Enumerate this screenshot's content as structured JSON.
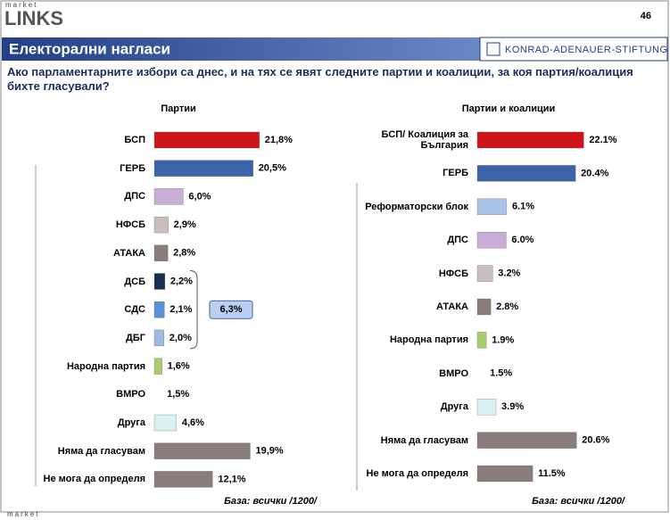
{
  "header": {
    "logo_top": "market",
    "logo": "LINKS",
    "page": "46",
    "title": "Електорални нагласи",
    "org": "KONRAD-ADENAUER-STIFTUNG",
    "question": "Ако парламентарните избори са днес, и на тях се явят следните партии и коалиции, за коя партия/коалиция бихте гласували?"
  },
  "footer": "market",
  "chart_data": [
    {
      "type": "bar",
      "title": "Партии",
      "categories": [
        "БСП",
        "ГЕРБ",
        "ДПС",
        "НФСБ",
        "АТАКА",
        "ДСБ",
        "СДС",
        "ДБГ",
        "Народна партия",
        "ВМРО",
        "Друга",
        "Няма да гласувам",
        "Не мога да определя"
      ],
      "values": [
        21.8,
        20.5,
        6.0,
        2.9,
        2.8,
        2.2,
        2.1,
        2.0,
        1.6,
        1.5,
        4.6,
        19.9,
        12.1
      ],
      "value_labels": [
        "21,8%",
        "20,5%",
        "6,0%",
        "2,9%",
        "2,8%",
        "2,2%",
        "2,1%",
        "2,0%",
        "1,6%",
        "1,5%",
        "4,6%",
        "19,9%",
        "12,1%"
      ],
      "colors": [
        "#d0141c",
        "#3d63a8",
        "#c8aed6",
        "#c9bdbd",
        "#8a7c7a",
        "#17304f",
        "#5b8fd6",
        "#9bbbe0",
        "#a8cc6e",
        "#ffffff",
        "#d8f0f2",
        "#8a7c7a",
        "#8a7c7a"
      ],
      "annotation": "6,3%",
      "note": "База: всички /1200/"
    },
    {
      "type": "bar",
      "title": "Партии  и коалиции",
      "categories": [
        "БСП/ Коалиция за България",
        "ГЕРБ",
        "Реформаторски блок",
        "ДПС",
        "НФСБ",
        "АТАКА",
        "Народна партия",
        "ВМРО",
        "Друга",
        "Няма да гласувам",
        "Не мога да определя"
      ],
      "values": [
        22.1,
        20.4,
        6.1,
        6.0,
        3.2,
        2.8,
        1.9,
        1.5,
        3.9,
        20.6,
        11.5
      ],
      "value_labels": [
        "22.1%",
        "20.4%",
        "6.1%",
        "6.0%",
        "3.2%",
        "2.8%",
        "1.9%",
        "1.5%",
        "3.9%",
        "20.6%",
        "11.5%"
      ],
      "colors": [
        "#d0141c",
        "#3d63a8",
        "#a7c3e8",
        "#c8aed6",
        "#c9bdbd",
        "#8a7c7a",
        "#a8cc6e",
        "#ffffff",
        "#d8f0f2",
        "#8a7c7a",
        "#8a7c7a"
      ],
      "note": "База: всички /1200/"
    }
  ]
}
